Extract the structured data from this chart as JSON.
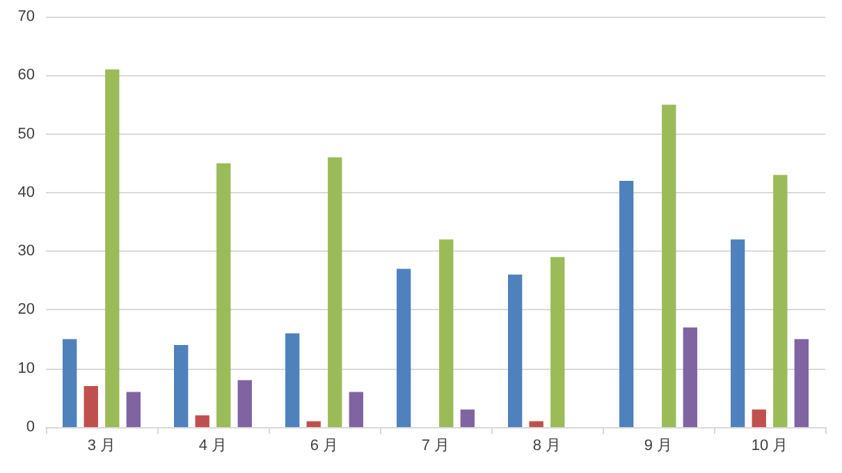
{
  "chart_data": {
    "type": "bar",
    "categories": [
      "3 月",
      "4 月",
      "6 月",
      "7 月",
      "8 月",
      "9 月",
      "10 月"
    ],
    "series": [
      {
        "color": "#4f81bd",
        "values": [
          15,
          14,
          16,
          27,
          26,
          42,
          32
        ]
      },
      {
        "color": "#c0504d",
        "values": [
          7,
          2,
          1,
          0,
          1,
          0,
          3
        ]
      },
      {
        "color": "#9bbb59",
        "values": [
          61,
          45,
          46,
          32,
          29,
          55,
          43
        ]
      },
      {
        "color": "#8064a2",
        "values": [
          6,
          8,
          6,
          3,
          0,
          17,
          15
        ]
      }
    ],
    "ylim": [
      0,
      70
    ],
    "yticks": [
      0,
      10,
      20,
      30,
      40,
      50,
      60,
      70
    ],
    "grid": "y"
  }
}
